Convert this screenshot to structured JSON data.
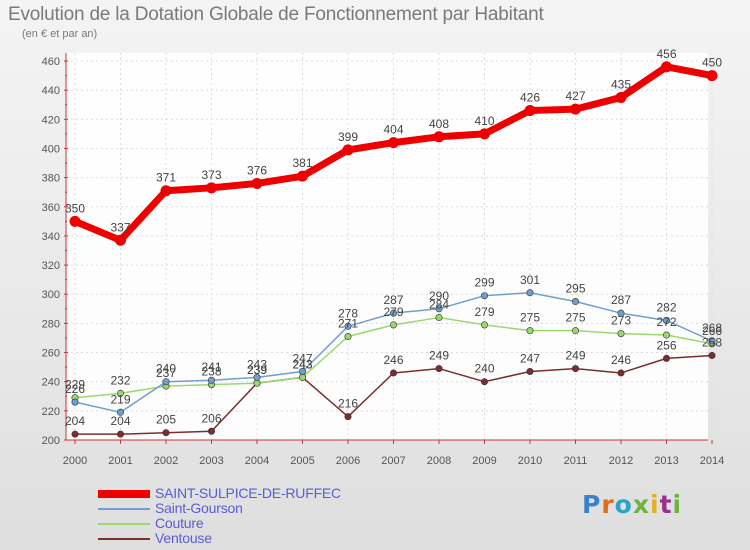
{
  "title": "Evolution de la Dotation Globale de Fonctionnement par Habitant",
  "subtitle": "(en € et par an)",
  "chart_data": {
    "type": "line",
    "categories": [
      "2000",
      "2001",
      "2002",
      "2003",
      "2004",
      "2005",
      "2006",
      "2007",
      "2008",
      "2009",
      "2010",
      "2011",
      "2012",
      "2013",
      "2014"
    ],
    "ylim": [
      200,
      460
    ],
    "yticks": [
      200,
      220,
      240,
      260,
      280,
      300,
      320,
      340,
      360,
      380,
      400,
      420,
      440,
      460
    ],
    "grid": true,
    "legend_position": "bottom-left",
    "series": [
      {
        "name": "SAINT-SULPICE-DE-RUFFEC",
        "color": "#ee0000",
        "values": [
          350,
          337,
          371,
          373,
          376,
          381,
          399,
          404,
          408,
          410,
          426,
          427,
          435,
          456,
          450
        ]
      },
      {
        "name": "Saint-Gourson",
        "color": "#6f9fcf",
        "values": [
          226,
          219,
          240,
          241,
          243,
          247,
          278,
          287,
          290,
          299,
          301,
          295,
          287,
          282,
          268
        ]
      },
      {
        "name": "Couture",
        "color": "#9ad86e",
        "values": [
          229,
          232,
          237,
          238,
          239,
          243,
          271,
          279,
          284,
          279,
          275,
          275,
          273,
          272,
          266
        ]
      },
      {
        "name": "Ventouse",
        "color": "#7a2e2e",
        "values": [
          204,
          204,
          205,
          206,
          239,
          243,
          216,
          246,
          249,
          240,
          247,
          249,
          246,
          256,
          258
        ]
      }
    ]
  },
  "logo": {
    "text": "Proxiti",
    "letter_colors": [
      "#3b7fd0",
      "#e06c1a",
      "#2aa3c9",
      "#6cb33f",
      "#e2b21b",
      "#9d2f8f",
      "#6cb33f"
    ]
  }
}
